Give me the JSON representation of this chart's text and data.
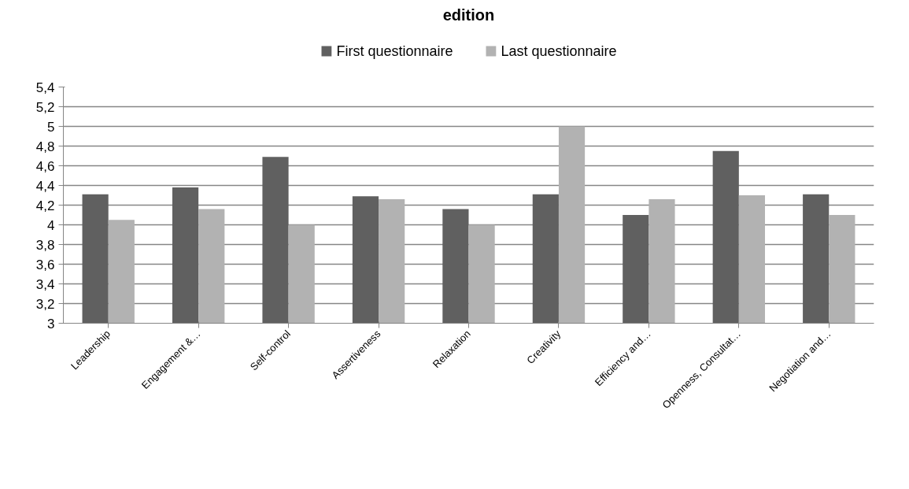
{
  "chart_data": {
    "type": "bar",
    "title": "edition",
    "categories": [
      "Leadership",
      "Engagement &…",
      "Self-control",
      "Assertiveness",
      "Relaxation",
      "Creativity",
      "Efficiency and…",
      "Openness, Consultat…",
      "Negotiation and…"
    ],
    "series": [
      {
        "name": "First questionnaire",
        "color": "#606060",
        "values": [
          4.31,
          4.38,
          4.69,
          4.29,
          4.16,
          4.31,
          4.1,
          4.75,
          4.31
        ]
      },
      {
        "name": "Last questionnaire",
        "color": "#b2b2b2",
        "values": [
          4.05,
          4.16,
          4.0,
          4.26,
          4.0,
          5.0,
          4.26,
          4.3,
          4.1
        ]
      }
    ],
    "ylim": [
      3,
      5.4
    ],
    "yticks": [
      3,
      {
        "value": 3.2,
        "label": "3,2"
      },
      {
        "value": 3.4,
        "label": "3,4"
      },
      {
        "value": 3.6,
        "label": "3,6"
      },
      {
        "value": 3.8,
        "label": "3,8"
      },
      4,
      {
        "value": 4.2,
        "label": "4,2"
      },
      {
        "value": 4.4,
        "label": "4,4"
      },
      {
        "value": 4.6,
        "label": "4,6"
      },
      {
        "value": 4.8,
        "label": "4,8"
      },
      5,
      {
        "value": 5.2,
        "label": "5,2"
      },
      {
        "value": 5.4,
        "label": "5,4"
      }
    ],
    "grid": "y",
    "legend": "top"
  }
}
